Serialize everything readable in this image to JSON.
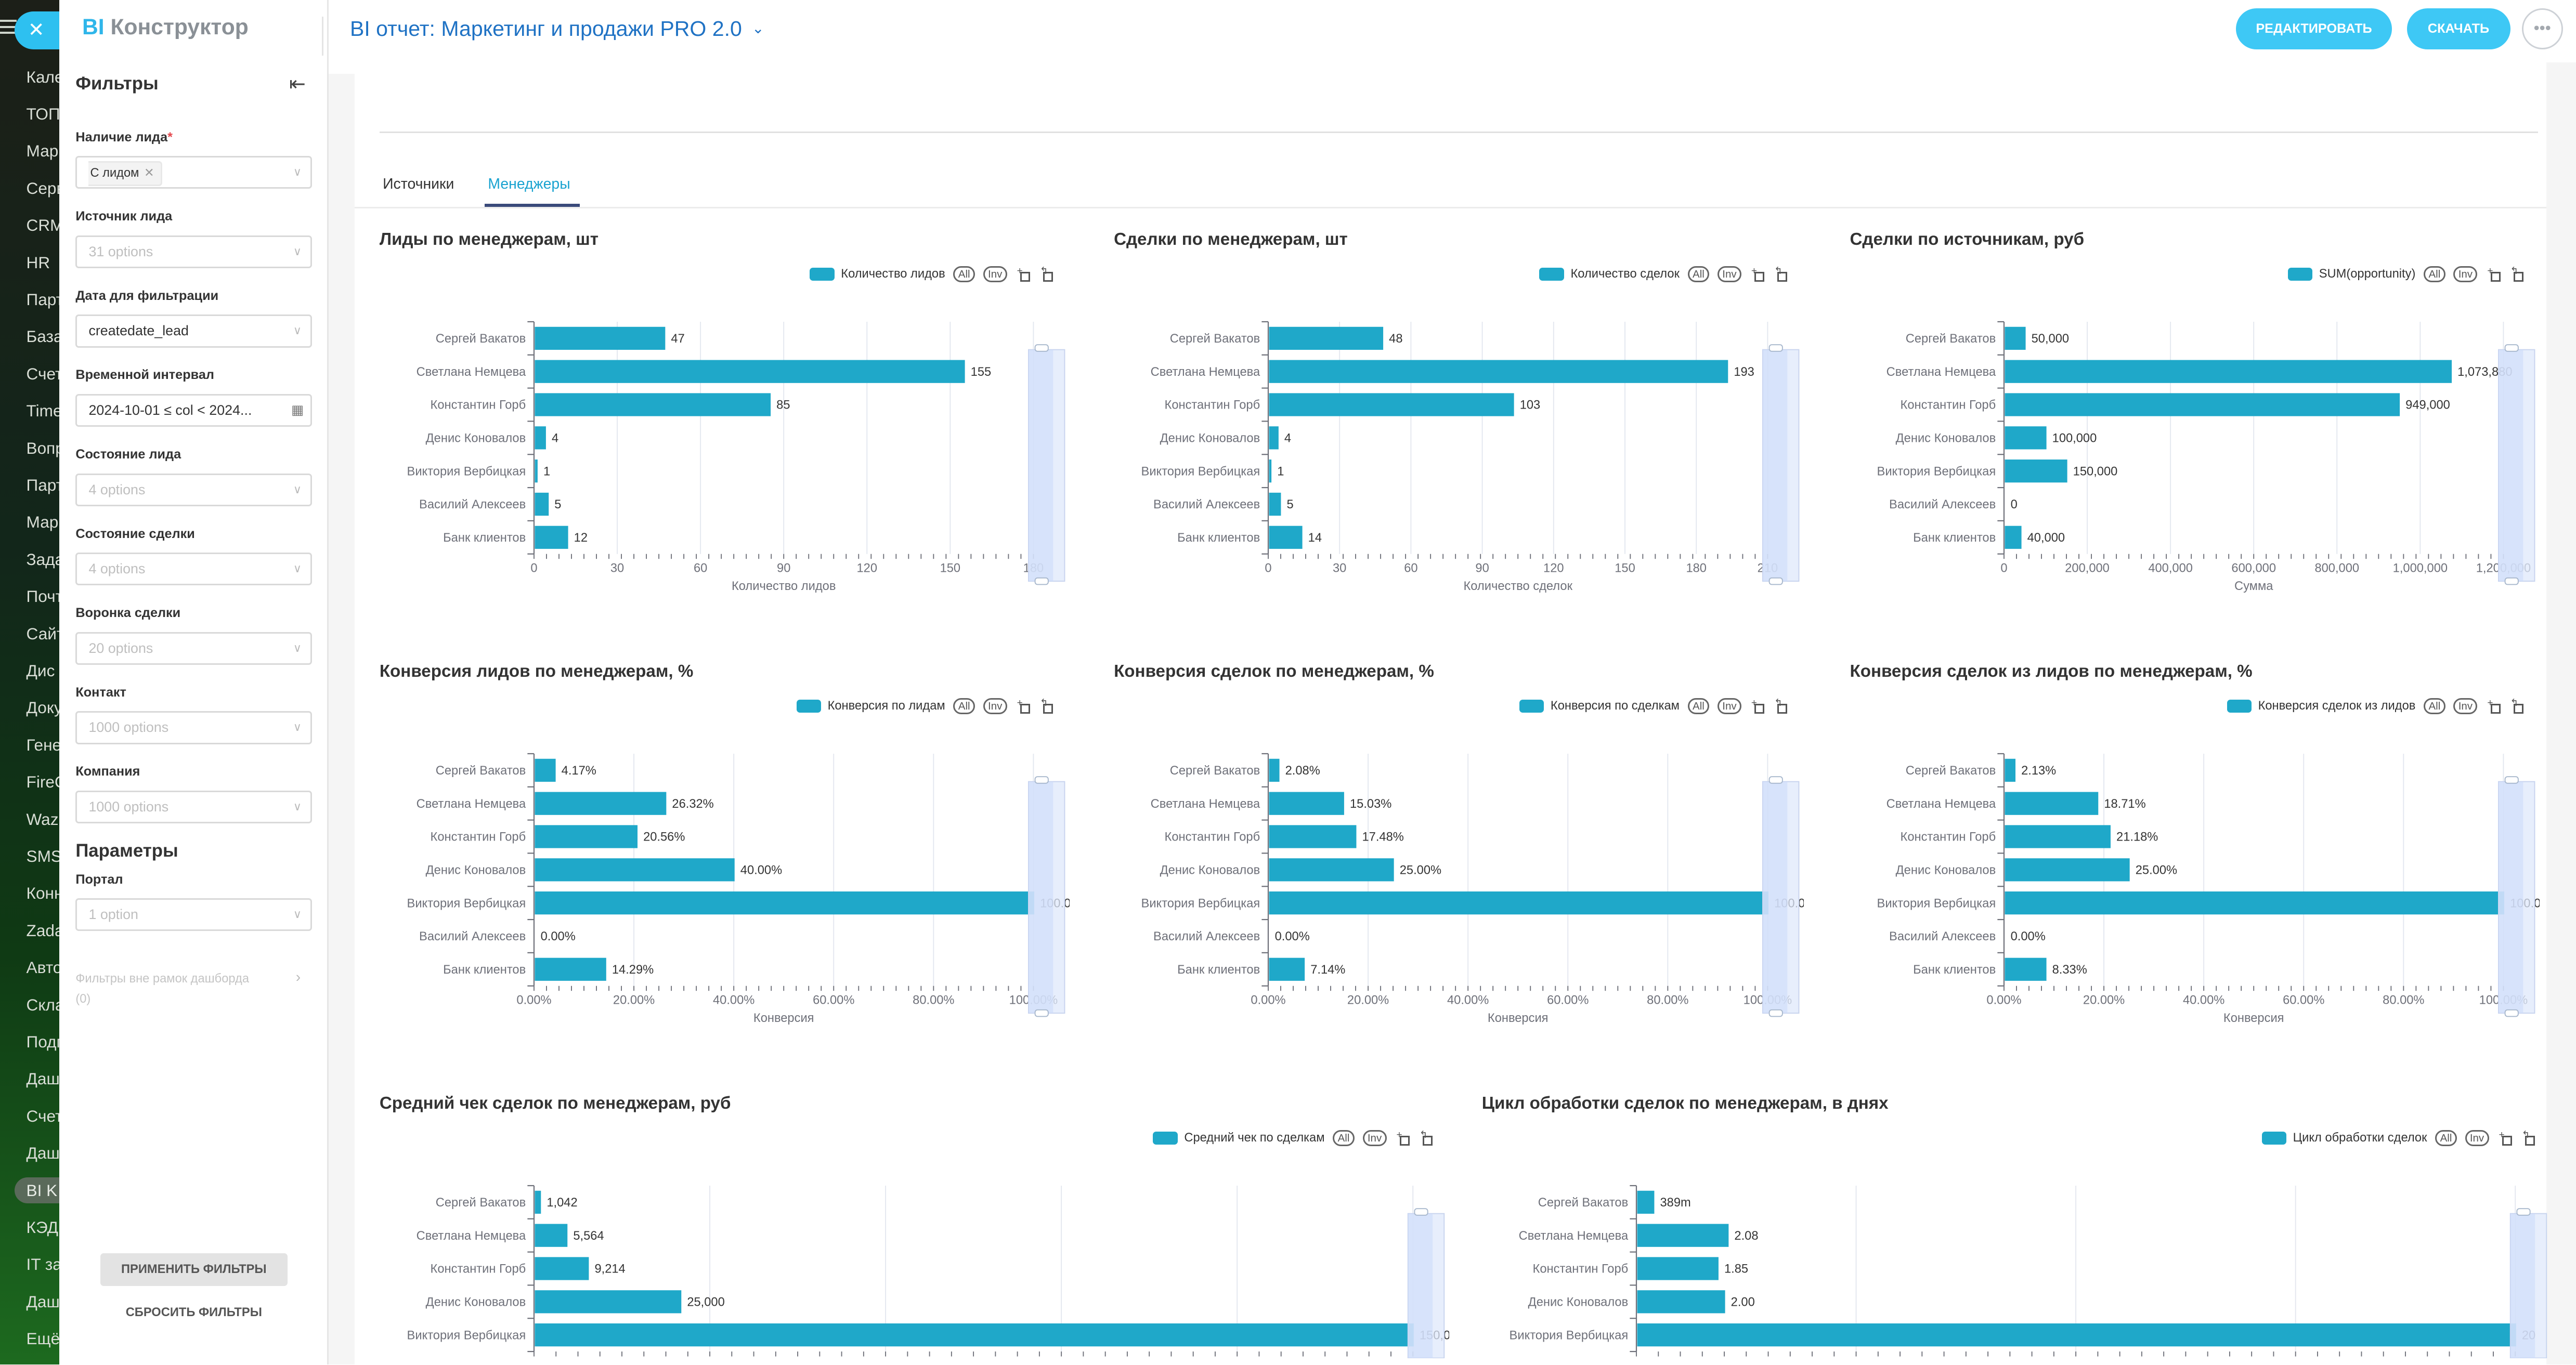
{
  "colors": {
    "accent": "#1fa8c9",
    "brand": "#3ec8f5",
    "title": "#1f72c4",
    "active_tab": "#1aa3d0"
  },
  "nav": {
    "items": [
      "Кале",
      "ТОП",
      "Мар",
      "Серв",
      "CRM",
      "HR",
      "Парт",
      "База",
      "Счет",
      "Time",
      "Вопр",
      "Парт",
      "Мар",
      "Зада",
      "Почт",
      "Сайт",
      "Дис",
      "Доку",
      "Гене",
      "FireC",
      "Waz",
      "SMS",
      "Конн",
      "Zada",
      "Авто",
      "Скла",
      "Подп",
      "Даш",
      "Счет",
      "Даш",
      "BI K",
      "КЭД",
      "IT за",
      "Даш",
      "Ещё"
    ],
    "active_index": 30,
    "close_icon": "close-icon"
  },
  "header": {
    "logo_bi": "BI",
    "logo_text": "Конструктор",
    "title": "BI отчет: Маркетинг и продажи PRO 2.0",
    "edit": "РЕДАКТИРОВАТЬ",
    "download": "СКАЧАТЬ",
    "more": "•••"
  },
  "filters": {
    "title": "Фильтры",
    "fields": [
      {
        "label": "Наличие лида",
        "required": "*",
        "chip": "С лидом"
      },
      {
        "label": "Источник лида",
        "placeholder": "31 options"
      },
      {
        "label": "Дата для фильтрации",
        "value": "createdate_lead"
      },
      {
        "label": "Временной интервал",
        "value": "2024-10-01 ≤ col < 2024..."
      },
      {
        "label": "Состояние лида",
        "placeholder": "4 options"
      },
      {
        "label": "Состояние сделки",
        "placeholder": "4 options"
      },
      {
        "label": "Воронка сделки",
        "placeholder": "20 options"
      },
      {
        "label": "Контакт",
        "placeholder": "1000 options"
      },
      {
        "label": "Компания",
        "placeholder": "1000 options"
      }
    ],
    "params_title": "Параметры",
    "portal": {
      "label": "Портал",
      "placeholder": "1 option"
    },
    "outside_label": "Фильтры вне рамок дашборда",
    "outside_count": "(0)",
    "apply": "ПРИМЕНИТЬ ФИЛЬТРЫ",
    "reset": "СБРОСИТЬ ФИЛЬТРЫ"
  },
  "tabs": [
    {
      "label": "Источники"
    },
    {
      "label": "Менеджеры",
      "active": true
    }
  ],
  "legend_controls": {
    "all": "All",
    "inv": "Inv"
  },
  "chart_data": [
    {
      "type": "bar",
      "orientation": "horizontal",
      "title": "Лиды по менеджерам, шт",
      "legend": "Количество лидов",
      "categories": [
        "Сергей Вакатов",
        "Светлана Немцева",
        "Константин Горб",
        "Денис Коновалов",
        "Виктория Вербицкая",
        "Василий Алексеев",
        "Банк клиентов"
      ],
      "values": [
        47,
        155,
        85,
        4,
        1,
        5,
        12
      ],
      "labels": [
        "47",
        "155",
        "85",
        "4",
        "1",
        "5",
        "12"
      ],
      "xlim": [
        0,
        180
      ],
      "xticks": [
        0,
        30,
        60,
        90,
        120,
        150,
        180
      ],
      "xtick_labels": [
        "0",
        "30",
        "60",
        "90",
        "120",
        "150",
        "180"
      ],
      "xlabel": "Количество лидов",
      "grid": true
    },
    {
      "type": "bar",
      "orientation": "horizontal",
      "title": "Сделки по менеджерам, шт",
      "legend": "Количество сделок",
      "categories": [
        "Сергей Вакатов",
        "Светлана Немцева",
        "Константин Горб",
        "Денис Коновалов",
        "Виктория Вербицкая",
        "Василий Алексеев",
        "Банк клиентов"
      ],
      "values": [
        48,
        193,
        103,
        4,
        1,
        5,
        14
      ],
      "labels": [
        "48",
        "193",
        "103",
        "4",
        "1",
        "5",
        "14"
      ],
      "xlim": [
        0,
        210
      ],
      "xticks": [
        0,
        30,
        60,
        90,
        120,
        150,
        180,
        210
      ],
      "xtick_labels": [
        "0",
        "30",
        "60",
        "90",
        "120",
        "150",
        "180",
        "210"
      ],
      "xlabel": "Количество сделок",
      "grid": true
    },
    {
      "type": "bar",
      "orientation": "horizontal",
      "title": "Сделки по источникам, руб",
      "legend": "SUM(opportunity)",
      "categories": [
        "Сергей Вакатов",
        "Светлана Немцева",
        "Константин Горб",
        "Денис Коновалов",
        "Виктория Вербицкая",
        "Василий Алексеев",
        "Банк клиентов"
      ],
      "values": [
        50000,
        1073880,
        949000,
        100000,
        150000,
        0,
        40000
      ],
      "labels": [
        "50,000",
        "1,073,880",
        "949,000",
        "100,000",
        "150,000",
        "0",
        "40,000"
      ],
      "xlim": [
        0,
        1200000
      ],
      "xticks": [
        0,
        200000,
        400000,
        600000,
        800000,
        1000000,
        1200000
      ],
      "xtick_labels": [
        "0",
        "200,000",
        "400,000",
        "600,000",
        "800,000",
        "1,000,000",
        "1,200,000"
      ],
      "xlabel": "Сумма",
      "grid": true
    },
    {
      "type": "bar",
      "orientation": "horizontal",
      "title": "Конверсия лидов по менеджерам, %",
      "legend": "Конверсия по лидам",
      "categories": [
        "Сергей Вакатов",
        "Светлана Немцева",
        "Константин Горб",
        "Денис Коновалов",
        "Виктория Вербицкая",
        "Василий Алексеев",
        "Банк клиентов"
      ],
      "values": [
        4.17,
        26.32,
        20.56,
        40.0,
        100.0,
        0.0,
        14.29
      ],
      "labels": [
        "4.17%",
        "26.32%",
        "20.56%",
        "40.00%",
        "100.00%",
        "0.00%",
        "14.29%"
      ],
      "xlim": [
        0,
        100
      ],
      "xticks": [
        0,
        20,
        40,
        60,
        80,
        100
      ],
      "xtick_labels": [
        "0.00%",
        "20.00%",
        "40.00%",
        "60.00%",
        "80.00%",
        "100.00%"
      ],
      "xlabel": "Конверсия",
      "grid": true
    },
    {
      "type": "bar",
      "orientation": "horizontal",
      "title": "Конверсия сделок по менеджерам, %",
      "legend": "Конверсия по сделкам",
      "categories": [
        "Сергей Вакатов",
        "Светлана Немцева",
        "Константин Горб",
        "Денис Коновалов",
        "Виктория Вербицкая",
        "Василий Алексеев",
        "Банк клиентов"
      ],
      "values": [
        2.08,
        15.03,
        17.48,
        25.0,
        100.0,
        0.0,
        7.14
      ],
      "labels": [
        "2.08%",
        "15.03%",
        "17.48%",
        "25.00%",
        "100.00%",
        "0.00%",
        "7.14%"
      ],
      "xlim": [
        0,
        100
      ],
      "xticks": [
        0,
        20,
        40,
        60,
        80,
        100
      ],
      "xtick_labels": [
        "0.00%",
        "20.00%",
        "40.00%",
        "60.00%",
        "80.00%",
        "100.00%"
      ],
      "xlabel": "Конверсия",
      "grid": true
    },
    {
      "type": "bar",
      "orientation": "horizontal",
      "title": "Конверсия сделок из лидов по менеджерам, %",
      "legend": "Конверсия сделок из лидов",
      "categories": [
        "Сергей Вакатов",
        "Светлана Немцева",
        "Константин Горб",
        "Денис Коновалов",
        "Виктория Вербицкая",
        "Василий Алексеев",
        "Банк клиентов"
      ],
      "values": [
        2.13,
        18.71,
        21.18,
        25.0,
        100.0,
        0.0,
        8.33
      ],
      "labels": [
        "2.13%",
        "18.71%",
        "21.18%",
        "25.00%",
        "100.00%",
        "0.00%",
        "8.33%"
      ],
      "xlim": [
        0,
        100
      ],
      "xticks": [
        0,
        20,
        40,
        60,
        80,
        100
      ],
      "xtick_labels": [
        "0.00%",
        "20.00%",
        "40.00%",
        "60.00%",
        "80.00%",
        "100.00%"
      ],
      "xlabel": "Конверсия",
      "grid": true
    },
    {
      "type": "bar",
      "orientation": "horizontal",
      "title": "Средний чек сделок по менеджерам, руб",
      "legend": "Средний чек по сделкам",
      "categories": [
        "Сергей Вакатов",
        "Светлана Немцева",
        "Константин Горб",
        "Денис Коновалов",
        "Виктория Вербицкая"
      ],
      "values": [
        1042,
        5564,
        9214,
        25000,
        150000
      ],
      "labels": [
        "1,042",
        "5,564",
        "9,214",
        "25,000",
        "150,000"
      ],
      "xlim": [
        0,
        150000
      ],
      "xticks": [
        0,
        30000,
        60000,
        90000,
        120000,
        150000
      ],
      "xlabel": "",
      "grid": true
    },
    {
      "type": "bar",
      "orientation": "horizontal",
      "title": "Цикл обработки сделок по менеджерам, в днях",
      "legend": "Цикл обработки сделок",
      "categories": [
        "Сергей Вакатов",
        "Светлана Немцева",
        "Константин Горб",
        "Денис Коновалов",
        "Виктория Вербицкая"
      ],
      "values": [
        0.389,
        2.08,
        1.85,
        2.0,
        20
      ],
      "labels": [
        "389m",
        "2.08",
        "1.85",
        "2.00",
        "20"
      ],
      "xlim": [
        0,
        20
      ],
      "xticks": [
        0,
        5,
        10,
        15,
        20
      ],
      "xlabel": "",
      "grid": true
    }
  ]
}
